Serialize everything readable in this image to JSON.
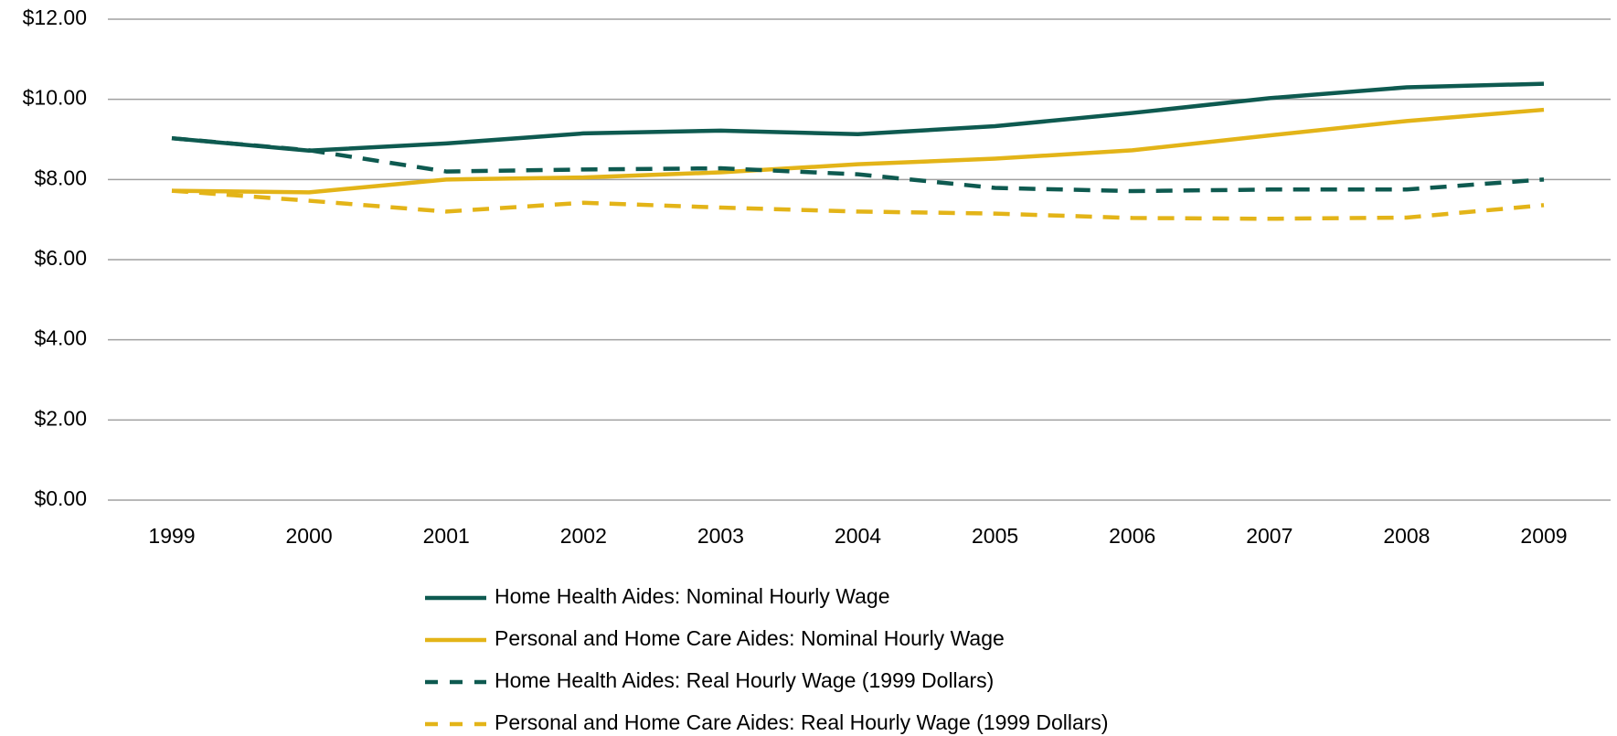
{
  "chart_data": {
    "type": "line",
    "categories": [
      "1999",
      "2000",
      "2001",
      "2002",
      "2003",
      "2004",
      "2005",
      "2006",
      "2007",
      "2008",
      "2009"
    ],
    "series": [
      {
        "name": "Home Health Aides: Nominal Hourly Wage",
        "color": "#0e5a50",
        "line_style": "solid",
        "values": [
          9.03,
          8.72,
          8.9,
          9.15,
          9.22,
          9.13,
          9.33,
          9.66,
          10.03,
          10.3,
          10.39
        ]
      },
      {
        "name": "Personal and Home Care Aides: Nominal Hourly Wage",
        "color": "#e3b418",
        "line_style": "solid",
        "values": [
          7.72,
          7.68,
          8.0,
          8.05,
          8.18,
          8.38,
          8.52,
          8.73,
          9.1,
          9.46,
          9.74
        ]
      },
      {
        "name": "Home Health Aides: Real Hourly Wage (1999 Dollars)",
        "color": "#0e5a50",
        "line_style": "dashed",
        "values": [
          9.03,
          8.73,
          8.2,
          8.25,
          8.28,
          8.13,
          7.79,
          7.71,
          7.75,
          7.75,
          8.0
        ]
      },
      {
        "name": "Personal and Home Care Aides: Real Hourly Wage (1999 Dollars)",
        "color": "#e3b418",
        "line_style": "dashed",
        "values": [
          7.72,
          7.47,
          7.2,
          7.42,
          7.3,
          7.2,
          7.15,
          7.04,
          7.02,
          7.05,
          7.36
        ]
      }
    ],
    "ylim": [
      0,
      12
    ],
    "yticks": [
      {
        "value": 0,
        "label": "$0.00"
      },
      {
        "value": 2,
        "label": "$2.00"
      },
      {
        "value": 4,
        "label": "$4.00"
      },
      {
        "value": 6,
        "label": "$6.00"
      },
      {
        "value": 8,
        "label": "$8.00"
      },
      {
        "value": 10,
        "label": "$10.00"
      },
      {
        "value": 12,
        "label": "$12.00"
      }
    ],
    "grid": true,
    "legend": "bottom"
  }
}
